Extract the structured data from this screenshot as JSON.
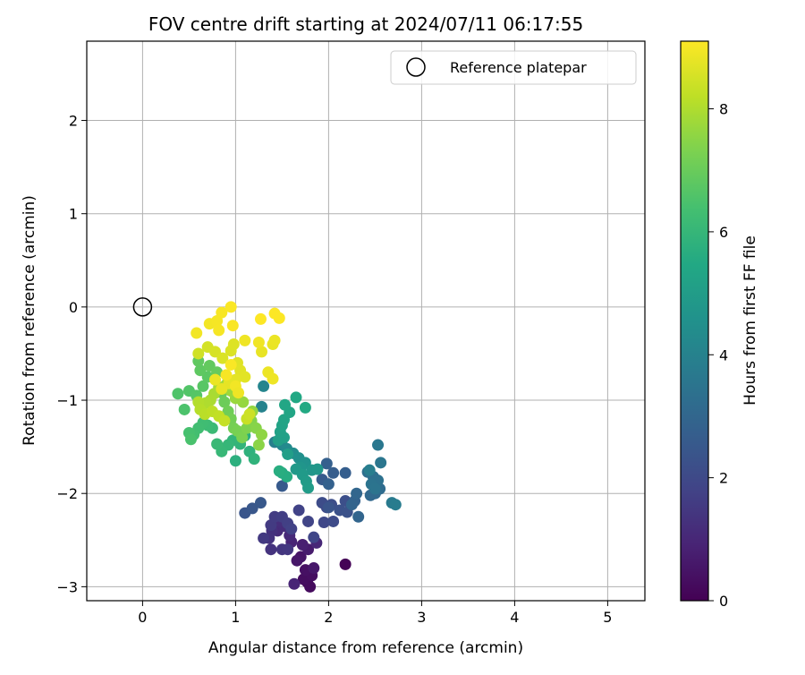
{
  "chart_data": {
    "type": "scatter",
    "title": "FOV centre drift starting at 2024/07/11 06:17:55",
    "xlabel": "Angular distance from reference (arcmin)",
    "ylabel": "Rotation from reference (arcmin)",
    "xlim": [
      -0.6,
      5.4
    ],
    "ylim": [
      -3.15,
      2.85
    ],
    "x_ticks": [
      "0",
      "1",
      "2",
      "3",
      "4",
      "5"
    ],
    "y_ticks": [
      "2",
      "1",
      "0",
      "−1",
      "−2",
      "−3"
    ],
    "grid": true,
    "legend": {
      "placement": "top-right",
      "entries": [
        {
          "label": "Reference platepar",
          "marker": "open-circle"
        }
      ]
    },
    "reference_point": {
      "x": 0,
      "y": 0
    },
    "colorbar": {
      "label": "Hours from first FF file",
      "range": [
        0,
        9.1
      ],
      "ticks": [
        "0",
        "2",
        "4",
        "6",
        "8"
      ],
      "colormap": "viridis"
    },
    "series": [
      {
        "color_by": "hours",
        "points": [
          [
            2.18,
            -2.76,
            0.05
          ],
          [
            1.77,
            -2.95,
            0.2
          ],
          [
            1.8,
            -3.0,
            0.25
          ],
          [
            1.73,
            -2.92,
            0.3
          ],
          [
            1.82,
            -2.88,
            0.35
          ],
          [
            1.75,
            -2.82,
            0.4
          ],
          [
            1.7,
            -2.68,
            0.5
          ],
          [
            1.66,
            -2.72,
            0.55
          ],
          [
            1.84,
            -2.8,
            0.6
          ],
          [
            1.78,
            -2.6,
            0.7
          ],
          [
            1.72,
            -2.55,
            0.8
          ],
          [
            1.6,
            -2.52,
            0.9
          ],
          [
            1.63,
            -2.97,
            0.95
          ],
          [
            1.87,
            -2.53,
            1.0
          ],
          [
            1.58,
            -2.45,
            1.05
          ],
          [
            1.45,
            -2.4,
            1.1
          ],
          [
            1.52,
            -2.35,
            1.15
          ],
          [
            1.48,
            -2.3,
            1.2
          ],
          [
            1.39,
            -2.4,
            1.25
          ],
          [
            1.36,
            -2.48,
            1.3
          ],
          [
            1.38,
            -2.6,
            1.35
          ],
          [
            1.5,
            -2.6,
            1.4
          ],
          [
            1.56,
            -2.6,
            1.45
          ],
          [
            1.3,
            -2.48,
            1.5
          ],
          [
            1.38,
            -2.34,
            1.55
          ],
          [
            1.42,
            -2.25,
            1.6
          ],
          [
            1.5,
            -2.25,
            1.65
          ],
          [
            1.56,
            -2.32,
            1.7
          ],
          [
            1.6,
            -2.38,
            1.75
          ],
          [
            1.68,
            -2.18,
            1.8
          ],
          [
            1.78,
            -2.3,
            1.85
          ],
          [
            1.84,
            -2.47,
            1.9
          ],
          [
            1.95,
            -2.31,
            1.95
          ],
          [
            1.98,
            -2.15,
            2.0
          ],
          [
            2.05,
            -2.3,
            2.05
          ],
          [
            1.93,
            -2.1,
            2.1
          ],
          [
            2.03,
            -2.12,
            2.15
          ],
          [
            2.18,
            -2.08,
            2.2
          ],
          [
            2.12,
            -2.18,
            2.25
          ],
          [
            2.2,
            -2.2,
            2.3
          ],
          [
            2.0,
            -2.15,
            2.35
          ],
          [
            1.1,
            -2.21,
            2.4
          ],
          [
            1.18,
            -2.16,
            2.45
          ],
          [
            1.27,
            -2.1,
            2.5
          ],
          [
            1.5,
            -1.92,
            2.55
          ],
          [
            1.93,
            -1.85,
            2.6
          ],
          [
            2.05,
            -1.78,
            2.65
          ],
          [
            2.18,
            -1.78,
            2.7
          ],
          [
            1.98,
            -1.68,
            2.75
          ],
          [
            2.0,
            -1.9,
            2.8
          ],
          [
            2.28,
            -2.08,
            2.85
          ],
          [
            2.25,
            -2.12,
            2.9
          ],
          [
            2.32,
            -2.25,
            2.95
          ],
          [
            2.3,
            -2.0,
            3.0
          ],
          [
            2.45,
            -2.02,
            3.05
          ],
          [
            2.5,
            -2.0,
            3.1
          ],
          [
            2.55,
            -1.95,
            3.2
          ],
          [
            2.42,
            -1.77,
            3.3
          ],
          [
            2.48,
            -1.82,
            3.35
          ],
          [
            2.53,
            -1.86,
            3.4
          ],
          [
            2.46,
            -1.9,
            3.45
          ],
          [
            2.5,
            -1.95,
            3.5
          ],
          [
            2.56,
            -1.67,
            3.55
          ],
          [
            2.53,
            -1.48,
            3.6
          ],
          [
            2.68,
            -2.1,
            3.7
          ],
          [
            2.72,
            -2.12,
            3.8
          ],
          [
            2.44,
            -1.75,
            3.85
          ],
          [
            1.42,
            -1.45,
            3.9
          ],
          [
            1.28,
            -1.07,
            4.0
          ],
          [
            1.3,
            -0.85,
            4.1
          ],
          [
            1.5,
            -1.48,
            4.2
          ],
          [
            1.55,
            -1.52,
            4.3
          ],
          [
            1.62,
            -1.57,
            4.4
          ],
          [
            1.68,
            -1.62,
            4.5
          ],
          [
            1.75,
            -1.67,
            4.6
          ],
          [
            1.7,
            -1.72,
            4.7
          ],
          [
            1.82,
            -1.75,
            4.75
          ],
          [
            1.88,
            -1.74,
            4.8
          ],
          [
            1.65,
            -1.74,
            4.85
          ],
          [
            1.72,
            -1.8,
            4.9
          ],
          [
            1.76,
            -1.87,
            4.95
          ],
          [
            1.78,
            -1.94,
            5.0
          ],
          [
            1.56,
            -1.58,
            5.05
          ],
          [
            1.46,
            -1.43,
            5.1
          ],
          [
            1.52,
            -1.4,
            5.15
          ],
          [
            1.48,
            -1.34,
            5.2
          ],
          [
            1.5,
            -1.27,
            5.25
          ],
          [
            1.52,
            -1.21,
            5.3
          ],
          [
            1.58,
            -1.13,
            5.35
          ],
          [
            1.53,
            -1.05,
            5.4
          ],
          [
            1.65,
            -0.97,
            5.45
          ],
          [
            1.75,
            -1.08,
            5.5
          ],
          [
            1.5,
            -1.78,
            5.55
          ],
          [
            1.55,
            -1.82,
            5.6
          ],
          [
            1.47,
            -1.76,
            5.65
          ],
          [
            1.1,
            -1.38,
            5.7
          ],
          [
            1.0,
            -1.65,
            5.75
          ],
          [
            1.15,
            -1.55,
            5.8
          ],
          [
            1.2,
            -1.63,
            5.85
          ],
          [
            1.05,
            -1.47,
            5.9
          ],
          [
            0.97,
            -1.43,
            5.95
          ],
          [
            0.92,
            -1.48,
            6.0
          ],
          [
            0.85,
            -1.55,
            6.05
          ],
          [
            0.8,
            -1.47,
            6.1
          ],
          [
            0.75,
            -1.3,
            6.15
          ],
          [
            0.7,
            -1.27,
            6.2
          ],
          [
            0.65,
            -1.24,
            6.25
          ],
          [
            0.6,
            -1.3,
            6.3
          ],
          [
            0.55,
            -1.37,
            6.35
          ],
          [
            0.5,
            -1.35,
            6.4
          ],
          [
            0.52,
            -1.42,
            6.45
          ],
          [
            0.45,
            -1.1,
            6.5
          ],
          [
            0.38,
            -0.93,
            6.55
          ],
          [
            0.5,
            -0.9,
            6.6
          ],
          [
            0.58,
            -0.95,
            6.65
          ],
          [
            0.65,
            -0.85,
            6.7
          ],
          [
            0.7,
            -0.75,
            6.75
          ],
          [
            0.62,
            -0.68,
            6.8
          ],
          [
            0.6,
            -0.58,
            6.85
          ],
          [
            0.72,
            -0.63,
            6.9
          ],
          [
            0.8,
            -0.7,
            6.95
          ],
          [
            0.85,
            -0.92,
            7.0
          ],
          [
            0.88,
            -1.02,
            7.05
          ],
          [
            0.92,
            -1.12,
            7.1
          ],
          [
            0.95,
            -1.2,
            7.15
          ],
          [
            0.98,
            -1.3,
            7.2
          ],
          [
            1.02,
            -1.33,
            7.25
          ],
          [
            1.07,
            -1.4,
            7.3
          ],
          [
            1.12,
            -1.3,
            7.35
          ],
          [
            1.17,
            -1.22,
            7.4
          ],
          [
            1.22,
            -1.3,
            7.45
          ],
          [
            1.25,
            -1.48,
            7.5
          ],
          [
            1.28,
            -1.37,
            7.55
          ],
          [
            1.18,
            -1.12,
            7.6
          ],
          [
            1.08,
            -1.02,
            7.65
          ],
          [
            1.0,
            -0.98,
            7.7
          ],
          [
            0.95,
            -0.9,
            7.75
          ],
          [
            0.9,
            -0.83,
            7.8
          ],
          [
            0.82,
            -0.86,
            7.85
          ],
          [
            0.77,
            -0.93,
            7.9
          ],
          [
            0.73,
            -1.0,
            7.95
          ],
          [
            0.68,
            -1.03,
            8.0
          ],
          [
            0.6,
            -1.02,
            8.05
          ],
          [
            0.62,
            -1.1,
            8.1
          ],
          [
            0.67,
            -1.15,
            8.15
          ],
          [
            0.75,
            -1.12,
            8.2
          ],
          [
            0.82,
            -1.17,
            8.25
          ],
          [
            0.88,
            -1.22,
            8.3
          ],
          [
            1.12,
            -1.2,
            8.35
          ],
          [
            1.15,
            -1.15,
            8.4
          ],
          [
            0.6,
            -0.5,
            8.45
          ],
          [
            0.7,
            -0.43,
            8.5
          ],
          [
            0.78,
            -0.48,
            8.55
          ],
          [
            0.86,
            -0.55,
            8.6
          ],
          [
            0.95,
            -0.47,
            8.62
          ],
          [
            0.98,
            -0.4,
            8.65
          ],
          [
            1.02,
            -0.6,
            8.68
          ],
          [
            1.05,
            -0.68,
            8.7
          ],
          [
            1.1,
            -0.75,
            8.72
          ],
          [
            1.0,
            -0.78,
            8.75
          ],
          [
            0.93,
            -0.82,
            8.78
          ],
          [
            1.28,
            -0.48,
            8.8
          ],
          [
            1.4,
            -0.4,
            8.82
          ],
          [
            1.42,
            -0.36,
            8.84
          ],
          [
            1.35,
            -0.7,
            8.86
          ],
          [
            1.4,
            -0.77,
            8.88
          ],
          [
            1.1,
            -0.36,
            8.9
          ],
          [
            1.25,
            -0.38,
            8.92
          ],
          [
            0.58,
            -0.28,
            8.94
          ],
          [
            0.72,
            -0.18,
            8.96
          ],
          [
            0.8,
            -0.15,
            8.98
          ],
          [
            0.82,
            -0.25,
            9.0
          ],
          [
            0.85,
            -0.06,
            9.02
          ],
          [
            0.97,
            -0.2,
            9.04
          ],
          [
            0.95,
            0.0,
            9.06
          ],
          [
            1.42,
            -0.07,
            9.08
          ],
          [
            1.47,
            -0.12,
            9.09
          ],
          [
            1.27,
            -0.13,
            9.1
          ],
          [
            0.95,
            -0.62,
            9.05
          ],
          [
            0.9,
            -0.73,
            9.0
          ],
          [
            1.0,
            -0.85,
            8.95
          ],
          [
            1.03,
            -0.92,
            8.9
          ],
          [
            0.78,
            -0.78,
            8.85
          ],
          [
            0.85,
            -0.88,
            8.8
          ]
        ]
      }
    ]
  }
}
